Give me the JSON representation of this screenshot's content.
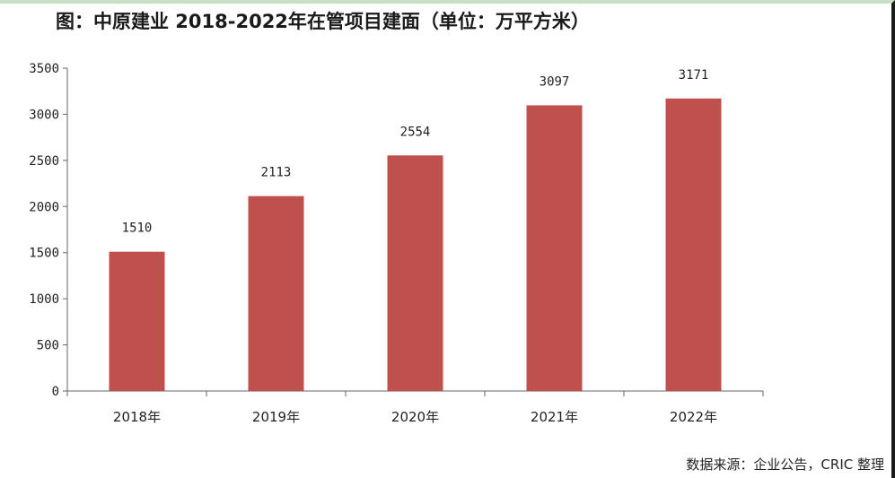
{
  "title": "图：中原建业 2018-2022年在管项目建面（单位：万平方米）",
  "source": "数据来源：企业公告，CRIC 整理",
  "colors": {
    "bar": "#c0504d",
    "axis": "#666666"
  },
  "chart_data": {
    "type": "bar",
    "title": "图：中原建业 2018-2022年在管项目建面（单位：万平方米）",
    "categories": [
      "2018年",
      "2019年",
      "2020年",
      "2021年",
      "2022年"
    ],
    "values": [
      1510,
      2113,
      2554,
      3097,
      3171
    ],
    "ylim": [
      0,
      3500
    ],
    "yticks": [
      0,
      500,
      1000,
      1500,
      2000,
      2500,
      3000,
      3500
    ],
    "grid": false,
    "legend": "none",
    "data_labels": true
  }
}
